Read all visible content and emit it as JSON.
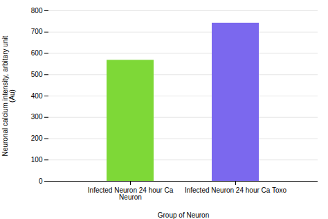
{
  "chart_data": {
    "type": "bar",
    "categories": [
      "Infected Neuron 24 hour Ca\nNeuron",
      "Infected Neuron 24 hour Ca Toxo"
    ],
    "values": [
      568,
      742
    ],
    "colors": [
      "#7ED837",
      "#7B68EE"
    ],
    "xlabel": "Group of Neuron",
    "ylabel": "Neuronal calcium intensity, arbitary unit\n(Au)",
    "ylim": [
      0,
      800
    ],
    "yticks": [
      0,
      100,
      200,
      300,
      400,
      500,
      600,
      700,
      800
    ],
    "grid": true
  }
}
